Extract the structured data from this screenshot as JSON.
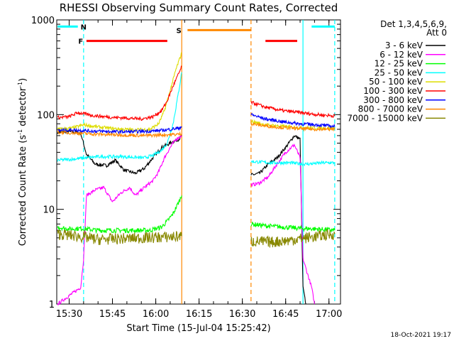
{
  "chart_data": {
    "type": "line",
    "title": "RHESSI Observing Summary Count Rates, Corrected",
    "xlabel": "Start Time (15-Jul-04 15:25:42)",
    "ylabel": "Corrected Count Rate (s⁻¹ detector⁻¹)",
    "ylabel_main": "Corrected Count Rate (s",
    "ylabel_mid": " detector",
    "ylabel_end": ")",
    "ylabel_sup": "-1",
    "yscale": "log",
    "ylim": [
      1,
      1000
    ],
    "xlim": [
      "15:25:42",
      "17:04:00"
    ],
    "xticks": [
      "15:30",
      "15:45",
      "16:00",
      "16:15",
      "16:30",
      "16:45",
      "17:00"
    ],
    "yticks": [
      "1",
      "10",
      "100",
      "1000"
    ],
    "legend_header": [
      "Det 1,3,4,5,6,9,",
      "Att 0"
    ],
    "legend_position": "right",
    "footer_date": "18-Oct-2021 19:17",
    "gaps": [
      [
        "16:11",
        "16:33"
      ]
    ],
    "annotations": [
      {
        "text": "F",
        "x": "15:34",
        "color": "#ff0000"
      },
      {
        "text": "N",
        "x": "15:35",
        "color": "#00ffff"
      },
      {
        "text": "S",
        "x": "16:08",
        "color": "#ff8800"
      }
    ],
    "flag_bars": [
      {
        "label": "F",
        "color": "#ff0000",
        "y": 600,
        "ranges": [
          [
            "15:36",
            "16:04"
          ],
          [
            "16:38",
            "16:49"
          ]
        ]
      },
      {
        "label": "N",
        "color": "#00ffff",
        "y": 850,
        "ranges": [
          [
            "15:26",
            "15:33"
          ],
          [
            "16:54",
            "17:02"
          ]
        ]
      },
      {
        "label": "S",
        "color": "#ff8800",
        "y": 780,
        "ranges": [
          [
            "16:11",
            "16:33"
          ]
        ]
      }
    ],
    "vertical_markers": [
      {
        "x": "15:35",
        "color": "#00ffff",
        "style": "dashed"
      },
      {
        "x": "16:51",
        "color": "#00ffff",
        "style": "solid"
      },
      {
        "x": "17:02",
        "color": "#00ffff",
        "style": "dashed"
      },
      {
        "x": "16:09",
        "color": "#ff8800",
        "style": "solid"
      },
      {
        "x": "16:33",
        "color": "#ff8800",
        "style": "dashed"
      }
    ],
    "series": [
      {
        "name": "3 - 6 keV",
        "color": "#000000",
        "pre": [
          [
            "15:26",
            65
          ],
          [
            "15:30",
            66
          ],
          [
            "15:34",
            64
          ],
          [
            "15:36",
            38
          ],
          [
            "15:39",
            30
          ],
          [
            "15:43",
            29
          ],
          [
            "15:46",
            33
          ],
          [
            "15:49",
            26
          ],
          [
            "15:53",
            24
          ],
          [
            "15:56",
            27
          ],
          [
            "15:59",
            35
          ],
          [
            "16:02",
            45
          ],
          [
            "16:05",
            50
          ],
          [
            "16:08",
            55
          ],
          [
            "16:09",
            60
          ]
        ],
        "post": [
          [
            "16:33",
            23
          ],
          [
            "16:36",
            24
          ],
          [
            "16:39",
            30
          ],
          [
            "16:42",
            35
          ],
          [
            "16:45",
            45
          ],
          [
            "16:48",
            60
          ],
          [
            "16:50",
            55
          ],
          [
            "16:51",
            1.5
          ],
          [
            "16:52",
            1
          ]
        ]
      },
      {
        "name": "6 - 12 keV",
        "color": "#ff00ff",
        "pre": [
          [
            "15:26",
            1
          ],
          [
            "15:34",
            1.5
          ],
          [
            "15:35",
            3
          ],
          [
            "15:36",
            14
          ],
          [
            "15:39",
            16
          ],
          [
            "15:42",
            17
          ],
          [
            "15:45",
            12
          ],
          [
            "15:48",
            15
          ],
          [
            "15:51",
            17
          ],
          [
            "15:53",
            14
          ],
          [
            "15:56",
            17
          ],
          [
            "15:59",
            20
          ],
          [
            "16:01",
            25
          ],
          [
            "16:03",
            35
          ],
          [
            "16:05",
            45
          ],
          [
            "16:07",
            55
          ],
          [
            "16:09",
            60
          ]
        ],
        "post": [
          [
            "16:33",
            18
          ],
          [
            "16:36",
            19
          ],
          [
            "16:39",
            22
          ],
          [
            "16:42",
            30
          ],
          [
            "16:45",
            40
          ],
          [
            "16:48",
            48
          ],
          [
            "16:50",
            35
          ],
          [
            "16:51",
            3
          ],
          [
            "16:54",
            1.5
          ],
          [
            "16:55",
            1
          ]
        ]
      },
      {
        "name": "12 - 25 keV",
        "color": "#00ff00",
        "pre": [
          [
            "15:26",
            6.5
          ],
          [
            "15:30",
            6.2
          ],
          [
            "15:34",
            6.3
          ],
          [
            "15:40",
            6
          ],
          [
            "15:46",
            6
          ],
          [
            "15:52",
            6
          ],
          [
            "15:58",
            6
          ],
          [
            "16:02",
            6.5
          ],
          [
            "16:04",
            7.5
          ],
          [
            "16:06",
            9
          ],
          [
            "16:08",
            12
          ],
          [
            "16:09",
            14
          ]
        ],
        "post": [
          [
            "16:33",
            7
          ],
          [
            "16:38",
            6.7
          ],
          [
            "16:44",
            6.5
          ],
          [
            "16:50",
            6.3
          ],
          [
            "16:56",
            6.2
          ],
          [
            "17:02",
            6
          ]
        ]
      },
      {
        "name": "25 - 50 keV",
        "color": "#00ffff",
        "pre": [
          [
            "15:26",
            33
          ],
          [
            "15:32",
            34
          ],
          [
            "15:40",
            36
          ],
          [
            "15:48",
            36
          ],
          [
            "15:56",
            35
          ],
          [
            "15:59",
            37
          ],
          [
            "16:02",
            42
          ],
          [
            "16:04",
            50
          ],
          [
            "16:06",
            80
          ],
          [
            "16:08",
            180
          ],
          [
            "16:09",
            280
          ]
        ],
        "post": [
          [
            "16:33",
            32
          ],
          [
            "16:40",
            31
          ],
          [
            "16:46",
            31
          ],
          [
            "16:52",
            30
          ],
          [
            "16:58",
            31
          ],
          [
            "17:02",
            31
          ]
        ]
      },
      {
        "name": "50 - 100 keV",
        "color": "#dddd00",
        "pre": [
          [
            "15:26",
            70
          ],
          [
            "15:31",
            72
          ],
          [
            "15:35",
            78
          ],
          [
            "15:40",
            74
          ],
          [
            "15:46",
            71
          ],
          [
            "15:52",
            69
          ],
          [
            "15:58",
            70
          ],
          [
            "16:01",
            80
          ],
          [
            "16:03",
            110
          ],
          [
            "16:05",
            180
          ],
          [
            "16:07",
            300
          ],
          [
            "16:09",
            450
          ]
        ],
        "post": [
          [
            "16:33",
            85
          ],
          [
            "16:38",
            78
          ],
          [
            "16:44",
            75
          ],
          [
            "16:50",
            73
          ],
          [
            "16:56",
            72
          ],
          [
            "17:02",
            72
          ]
        ]
      },
      {
        "name": "100 - 300 keV",
        "color": "#ff0000",
        "pre": [
          [
            "15:26",
            93
          ],
          [
            "15:30",
            95
          ],
          [
            "15:33",
            105
          ],
          [
            "15:38",
            98
          ],
          [
            "15:44",
            94
          ],
          [
            "15:50",
            92
          ],
          [
            "15:55",
            90
          ],
          [
            "15:59",
            95
          ],
          [
            "16:02",
            110
          ],
          [
            "16:04",
            140
          ],
          [
            "16:06",
            200
          ],
          [
            "16:09",
            320
          ]
        ],
        "post": [
          [
            "16:33",
            135
          ],
          [
            "16:38",
            120
          ],
          [
            "16:44",
            110
          ],
          [
            "16:50",
            105
          ],
          [
            "16:56",
            100
          ],
          [
            "17:02",
            97
          ]
        ]
      },
      {
        "name": "300 - 800 keV",
        "color": "#0000ff",
        "pre": [
          [
            "15:26",
            68
          ],
          [
            "15:31",
            69
          ],
          [
            "15:38",
            67
          ],
          [
            "15:46",
            66
          ],
          [
            "15:52",
            66
          ],
          [
            "15:58",
            67
          ],
          [
            "16:02",
            68
          ],
          [
            "16:05",
            70
          ],
          [
            "16:08",
            72
          ],
          [
            "16:09",
            75
          ]
        ],
        "post": [
          [
            "16:33",
            100
          ],
          [
            "16:38",
            90
          ],
          [
            "16:44",
            84
          ],
          [
            "16:50",
            80
          ],
          [
            "16:56",
            78
          ],
          [
            "17:02",
            75
          ]
        ]
      },
      {
        "name": "800 - 7000 keV",
        "color": "#ff8800",
        "pre": [
          [
            "15:26",
            65
          ],
          [
            "15:32",
            64
          ],
          [
            "15:40",
            62
          ],
          [
            "15:48",
            61
          ],
          [
            "15:56",
            60
          ],
          [
            "16:02",
            61
          ],
          [
            "16:08",
            62
          ],
          [
            "16:09",
            63
          ]
        ],
        "post": [
          [
            "16:33",
            80
          ],
          [
            "16:38",
            76
          ],
          [
            "16:44",
            73
          ],
          [
            "16:50",
            71
          ],
          [
            "16:56",
            70
          ],
          [
            "17:02",
            70
          ]
        ]
      },
      {
        "name": "7000 - 15000 keV",
        "color": "#888800",
        "pre": [
          [
            "15:26",
            5.5
          ],
          [
            "15:33",
            5.2
          ],
          [
            "15:40",
            4.8
          ],
          [
            "15:48",
            4.9
          ],
          [
            "15:56",
            5
          ],
          [
            "16:04",
            5.1
          ],
          [
            "16:09",
            5.2
          ]
        ],
        "post": [
          [
            "16:33",
            4.6
          ],
          [
            "16:40",
            4.5
          ],
          [
            "16:46",
            4.7
          ],
          [
            "16:52",
            5
          ],
          [
            "16:58",
            5.3
          ],
          [
            "17:02",
            5.5
          ]
        ]
      }
    ]
  }
}
